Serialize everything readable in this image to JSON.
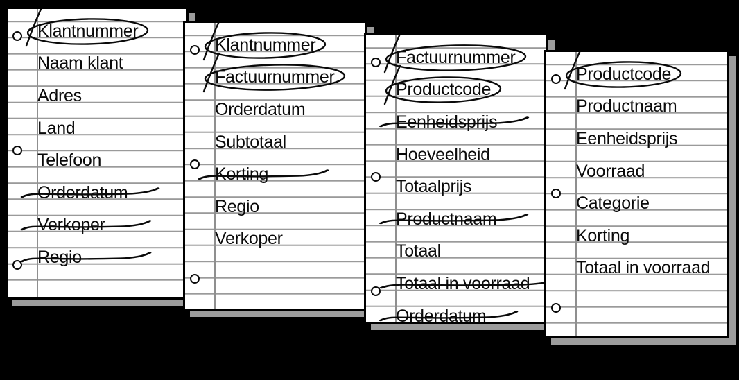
{
  "palette": {
    "background": "#000000",
    "card": "#ffffff",
    "rule_line": "#9a9a9a",
    "margin_line": "#8f8f8f",
    "border": "#000000",
    "shadow": "#9c9c9c",
    "ink": "#0a0a0a"
  },
  "legend": {
    "circled_means": "key field (circled and ticked)",
    "struck_means": "removed field (crossed out)"
  },
  "cards": [
    {
      "fields": [
        {
          "label": "Klantnummer",
          "state": "circled"
        },
        {
          "label": "Naam klant",
          "state": "plain"
        },
        {
          "label": "Adres",
          "state": "plain"
        },
        {
          "label": "Land",
          "state": "plain"
        },
        {
          "label": "Telefoon",
          "state": "plain"
        },
        {
          "label": "Orderdatum",
          "state": "struck"
        },
        {
          "label": "Verkoper",
          "state": "struck"
        },
        {
          "label": "Regio",
          "state": "struck"
        }
      ]
    },
    {
      "fields": [
        {
          "label": "Klantnummer",
          "state": "circled"
        },
        {
          "label": "Factuurnummer",
          "state": "circled"
        },
        {
          "label": "Orderdatum",
          "state": "plain"
        },
        {
          "label": "Subtotaal",
          "state": "plain"
        },
        {
          "label": "Korting",
          "state": "struck"
        },
        {
          "label": "Regio",
          "state": "plain"
        },
        {
          "label": "Verkoper",
          "state": "plain"
        }
      ]
    },
    {
      "fields": [
        {
          "label": "Factuurnummer",
          "state": "circled"
        },
        {
          "label": "Productcode",
          "state": "circled"
        },
        {
          "label": "Eenheidsprijs",
          "state": "struck"
        },
        {
          "label": "Hoeveelheid",
          "state": "plain"
        },
        {
          "label": "Totaalprijs",
          "state": "plain"
        },
        {
          "label": "Productnaam",
          "state": "struck"
        },
        {
          "label": "Totaal",
          "state": "plain"
        },
        {
          "label": "Totaal in voorraad",
          "state": "struck"
        },
        {
          "label": "Orderdatum",
          "state": "struck"
        }
      ]
    },
    {
      "fields": [
        {
          "label": "Productcode",
          "state": "circled"
        },
        {
          "label": "Productnaam",
          "state": "plain"
        },
        {
          "label": "Eenheidsprijs",
          "state": "plain"
        },
        {
          "label": "Voorraad",
          "state": "plain"
        },
        {
          "label": "Categorie",
          "state": "plain"
        },
        {
          "label": "Korting",
          "state": "plain"
        },
        {
          "label": "Totaal in voorraad",
          "state": "plain"
        }
      ]
    }
  ]
}
